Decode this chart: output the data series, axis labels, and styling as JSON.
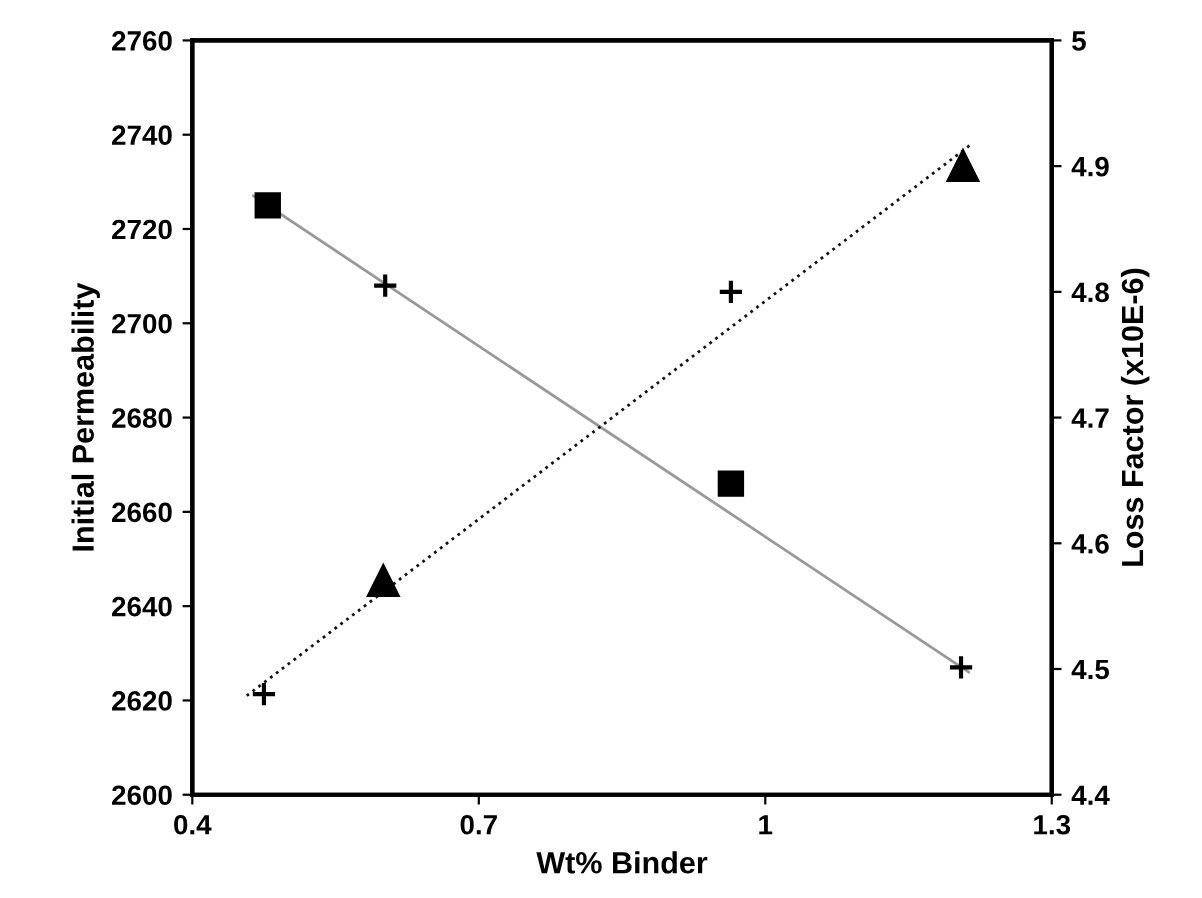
{
  "chart_data": {
    "type": "scatter",
    "xlabel": "Wt% Binder",
    "ylabel": "Initial Permeability",
    "y2label": "Loss Factor (x10E-6)",
    "xlim": [
      0.4,
      1.3
    ],
    "xticks": [
      0.4,
      0.7,
      1,
      1.3
    ],
    "ylim": [
      2600,
      2760
    ],
    "yticks": [
      2600,
      2620,
      2640,
      2660,
      2680,
      2700,
      2720,
      2740,
      2760
    ],
    "y2lim": [
      4.4,
      5
    ],
    "y2ticks": [
      4.4,
      4.5,
      4.6,
      4.7,
      4.8,
      4.9,
      5
    ],
    "grid": false,
    "legend": false,
    "series": [
      {
        "type": "line",
        "axis": "y",
        "color": "#999999",
        "line_style": "solid",
        "marker": "none",
        "x": [
          0.464,
          1.213
        ],
        "values": [
          2727,
          2626
        ]
      },
      {
        "type": "line",
        "axis": "y",
        "color": "#111111",
        "line_style": "dotted",
        "marker": "none",
        "x": [
          0.457,
          1.216
        ],
        "values": [
          2621,
          2738
        ]
      },
      {
        "axis": "y",
        "color": "#000000",
        "marker": "square",
        "x": [
          0.479,
          0.964
        ],
        "values": [
          2725,
          2666
        ]
      },
      {
        "axis": "y",
        "color": "#000000",
        "marker": "cross",
        "x": [
          0.602,
          1.205
        ],
        "values": [
          2708,
          2627
        ]
      },
      {
        "axis": "y2",
        "color": "#000000",
        "marker": "triangle",
        "x": [
          0.6,
          1.207
        ],
        "values": [
          4.57,
          4.9
        ]
      },
      {
        "axis": "y2",
        "color": "#000000",
        "marker": "cross",
        "x": [
          0.475,
          0.964
        ],
        "values": [
          4.48,
          4.8
        ]
      }
    ]
  }
}
